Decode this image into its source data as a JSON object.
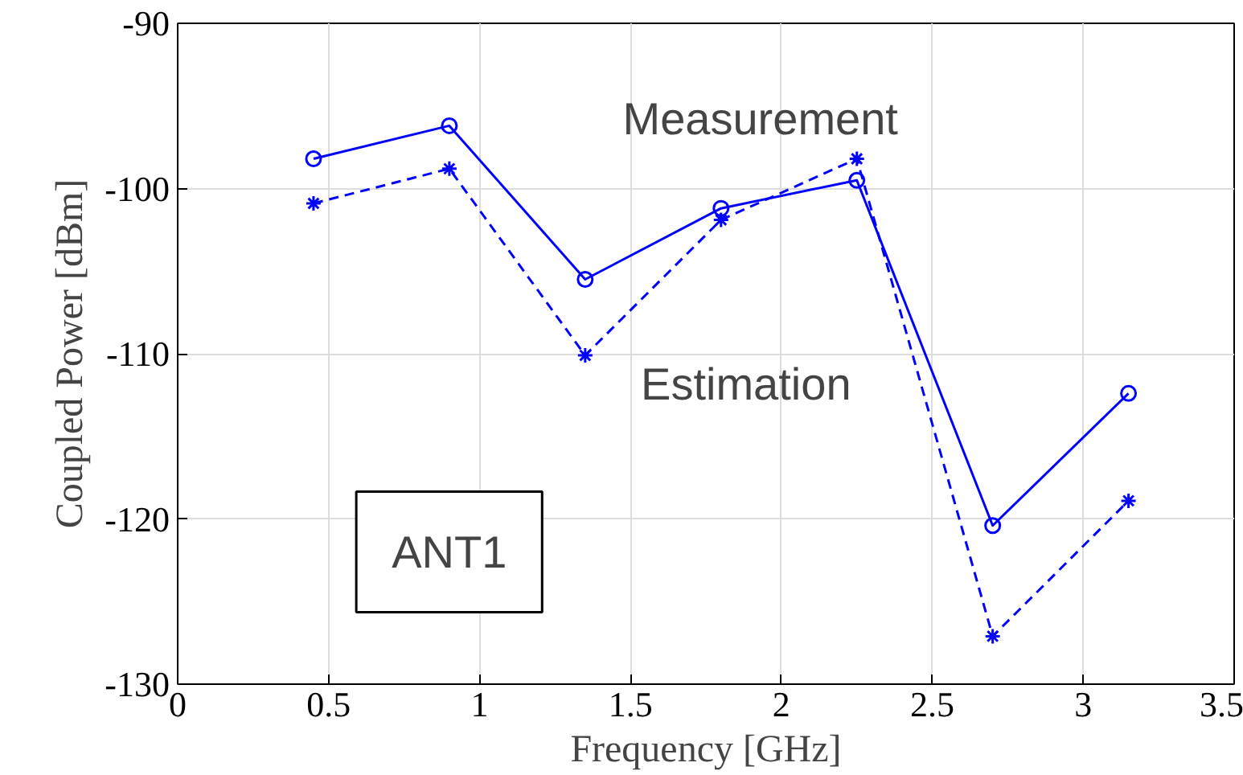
{
  "chart_data": {
    "type": "line",
    "xlabel": "Frequency [GHz]",
    "ylabel": "Coupled Power [dBm]",
    "x": [
      0.45,
      0.9,
      1.35,
      1.8,
      2.25,
      2.7,
      3.15
    ],
    "series": [
      {
        "name": "Measurement",
        "color": "#0000ff",
        "marker": "circle",
        "line_style": "solid",
        "values": [
          -98.2,
          -96.2,
          -105.5,
          -101.2,
          -99.5,
          -120.4,
          -112.4
        ]
      },
      {
        "name": "Estimation",
        "color": "#0000ff",
        "marker": "cross",
        "line_style": "dashed",
        "values": [
          -100.9,
          -98.8,
          -110.1,
          -101.9,
          -98.2,
          -127.1,
          -118.9
        ]
      }
    ],
    "annotations": [
      "ANT1"
    ],
    "xlim": [
      0,
      3.5
    ],
    "xticks": [
      0,
      0.5,
      1,
      1.5,
      2,
      2.5,
      3,
      3.5
    ],
    "ylim": [
      -130,
      -90
    ],
    "yticks": [
      -130,
      -120,
      -110,
      -100,
      -90
    ],
    "grid": true
  }
}
